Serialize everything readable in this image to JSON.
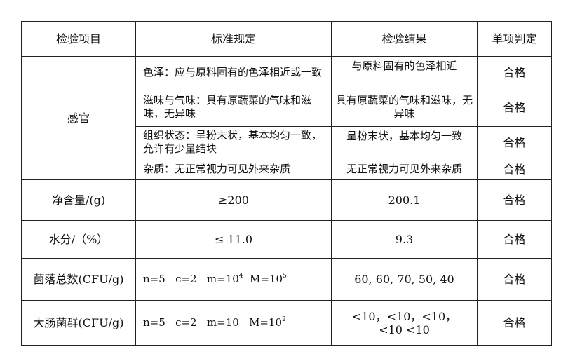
{
  "headers": [
    "检验项目",
    "标准规定",
    "检验结果",
    "单项判定"
  ],
  "sensory": {
    "item": "感官",
    "rows": [
      {
        "standard": "色泽：应与原料固有的色泽相近或一致",
        "result": "与原料固有的色泽相近",
        "judgment": "合格"
      },
      {
        "standard": "滋味与气味：具有原蔬菜的气味和滋味，无异味",
        "result": "具有原蔬菜的气味和滋味，无异味",
        "judgment": "合格"
      },
      {
        "standard": "组织状态：呈粉末状，基本均匀一致，允许有少量结块",
        "result": "呈粉末状，基本均匀一致",
        "judgment": "合格"
      },
      {
        "standard": "杂质：无正常视力可见外来杂质",
        "result": "无正常视力可见外来杂质",
        "judgment": "合格"
      }
    ]
  },
  "net": {
    "item": "净含量/(g)",
    "standard": "≥200",
    "result": "200.1",
    "judgment": "合格"
  },
  "water": {
    "item": "水分/（%）",
    "standard": "≤ 11.0",
    "result": "9.3",
    "judgment": "合格"
  },
  "colony": {
    "item": "菌落总数(CFU/g)",
    "std_a": "n=5   c=2   m=10",
    "std_a_exp": "4",
    "std_b": "  M=10",
    "std_b_exp": "5",
    "result": "60, 60, 70, 50, 40",
    "judgment": "合格"
  },
  "coliform": {
    "item": "大肠菌群(CFU/g)",
    "std_a": "n=5   c=2   m=10   M=10",
    "std_a_exp": "2",
    "result": "<10，<10，<10，<10 <10",
    "judgment": "合格"
  }
}
